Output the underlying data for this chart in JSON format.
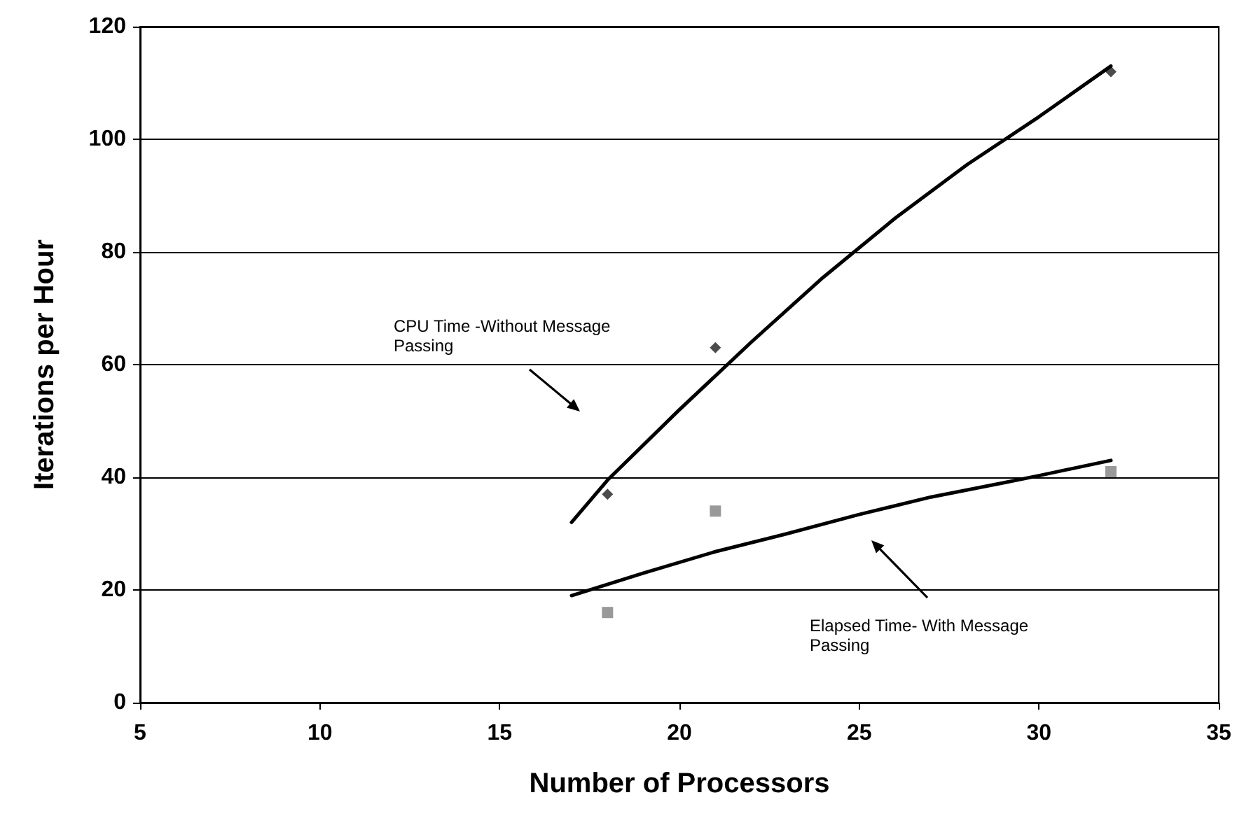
{
  "chart_data": {
    "type": "scatter",
    "xlabel": "Number of Processors",
    "ylabel": "Iterations per Hour",
    "xlim": [
      5,
      35
    ],
    "xticks": [
      5,
      10,
      15,
      20,
      25,
      30,
      35
    ],
    "ylim": [
      0,
      120
    ],
    "yticks": [
      0,
      20,
      40,
      60,
      80,
      100,
      120
    ],
    "grid": "y",
    "annotations": [
      "CPU Time -Without Message Passing",
      "Elapsed Time- With Message Passing"
    ],
    "series": [
      {
        "marker": "diamond",
        "color": "#1f1f1f",
        "x": [
          18,
          21,
          32
        ],
        "values": [
          37,
          63,
          112
        ]
      },
      {
        "marker": "square",
        "color": "#808080",
        "x": [
          18,
          21,
          32
        ],
        "values": [
          16,
          34,
          41
        ]
      },
      {
        "type": "line",
        "marker": "none",
        "line_style": "solid",
        "color": "#000000",
        "x": [
          17,
          18,
          20,
          22,
          24,
          26,
          28,
          30,
          32
        ],
        "values": [
          32,
          39.5,
          52,
          64,
          75.5,
          86,
          95.5,
          104,
          113
        ]
      },
      {
        "type": "line",
        "marker": "none",
        "line_style": "solid",
        "color": "#000000",
        "x": [
          17,
          19,
          21,
          23,
          25,
          27,
          29,
          30,
          32
        ],
        "values": [
          19,
          23,
          26.8,
          30,
          33.4,
          36.5,
          39,
          40.3,
          43
        ]
      }
    ]
  }
}
